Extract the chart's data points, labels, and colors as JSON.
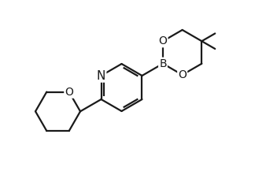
{
  "bg_color": "#ffffff",
  "line_color": "#1a1a1a",
  "line_width": 1.6,
  "font_size_label": 10,
  "figsize": [
    3.24,
    2.22
  ],
  "dpi": 100,
  "xlim": [
    -5.0,
    5.5
  ],
  "ylim": [
    -4.2,
    3.2
  ]
}
